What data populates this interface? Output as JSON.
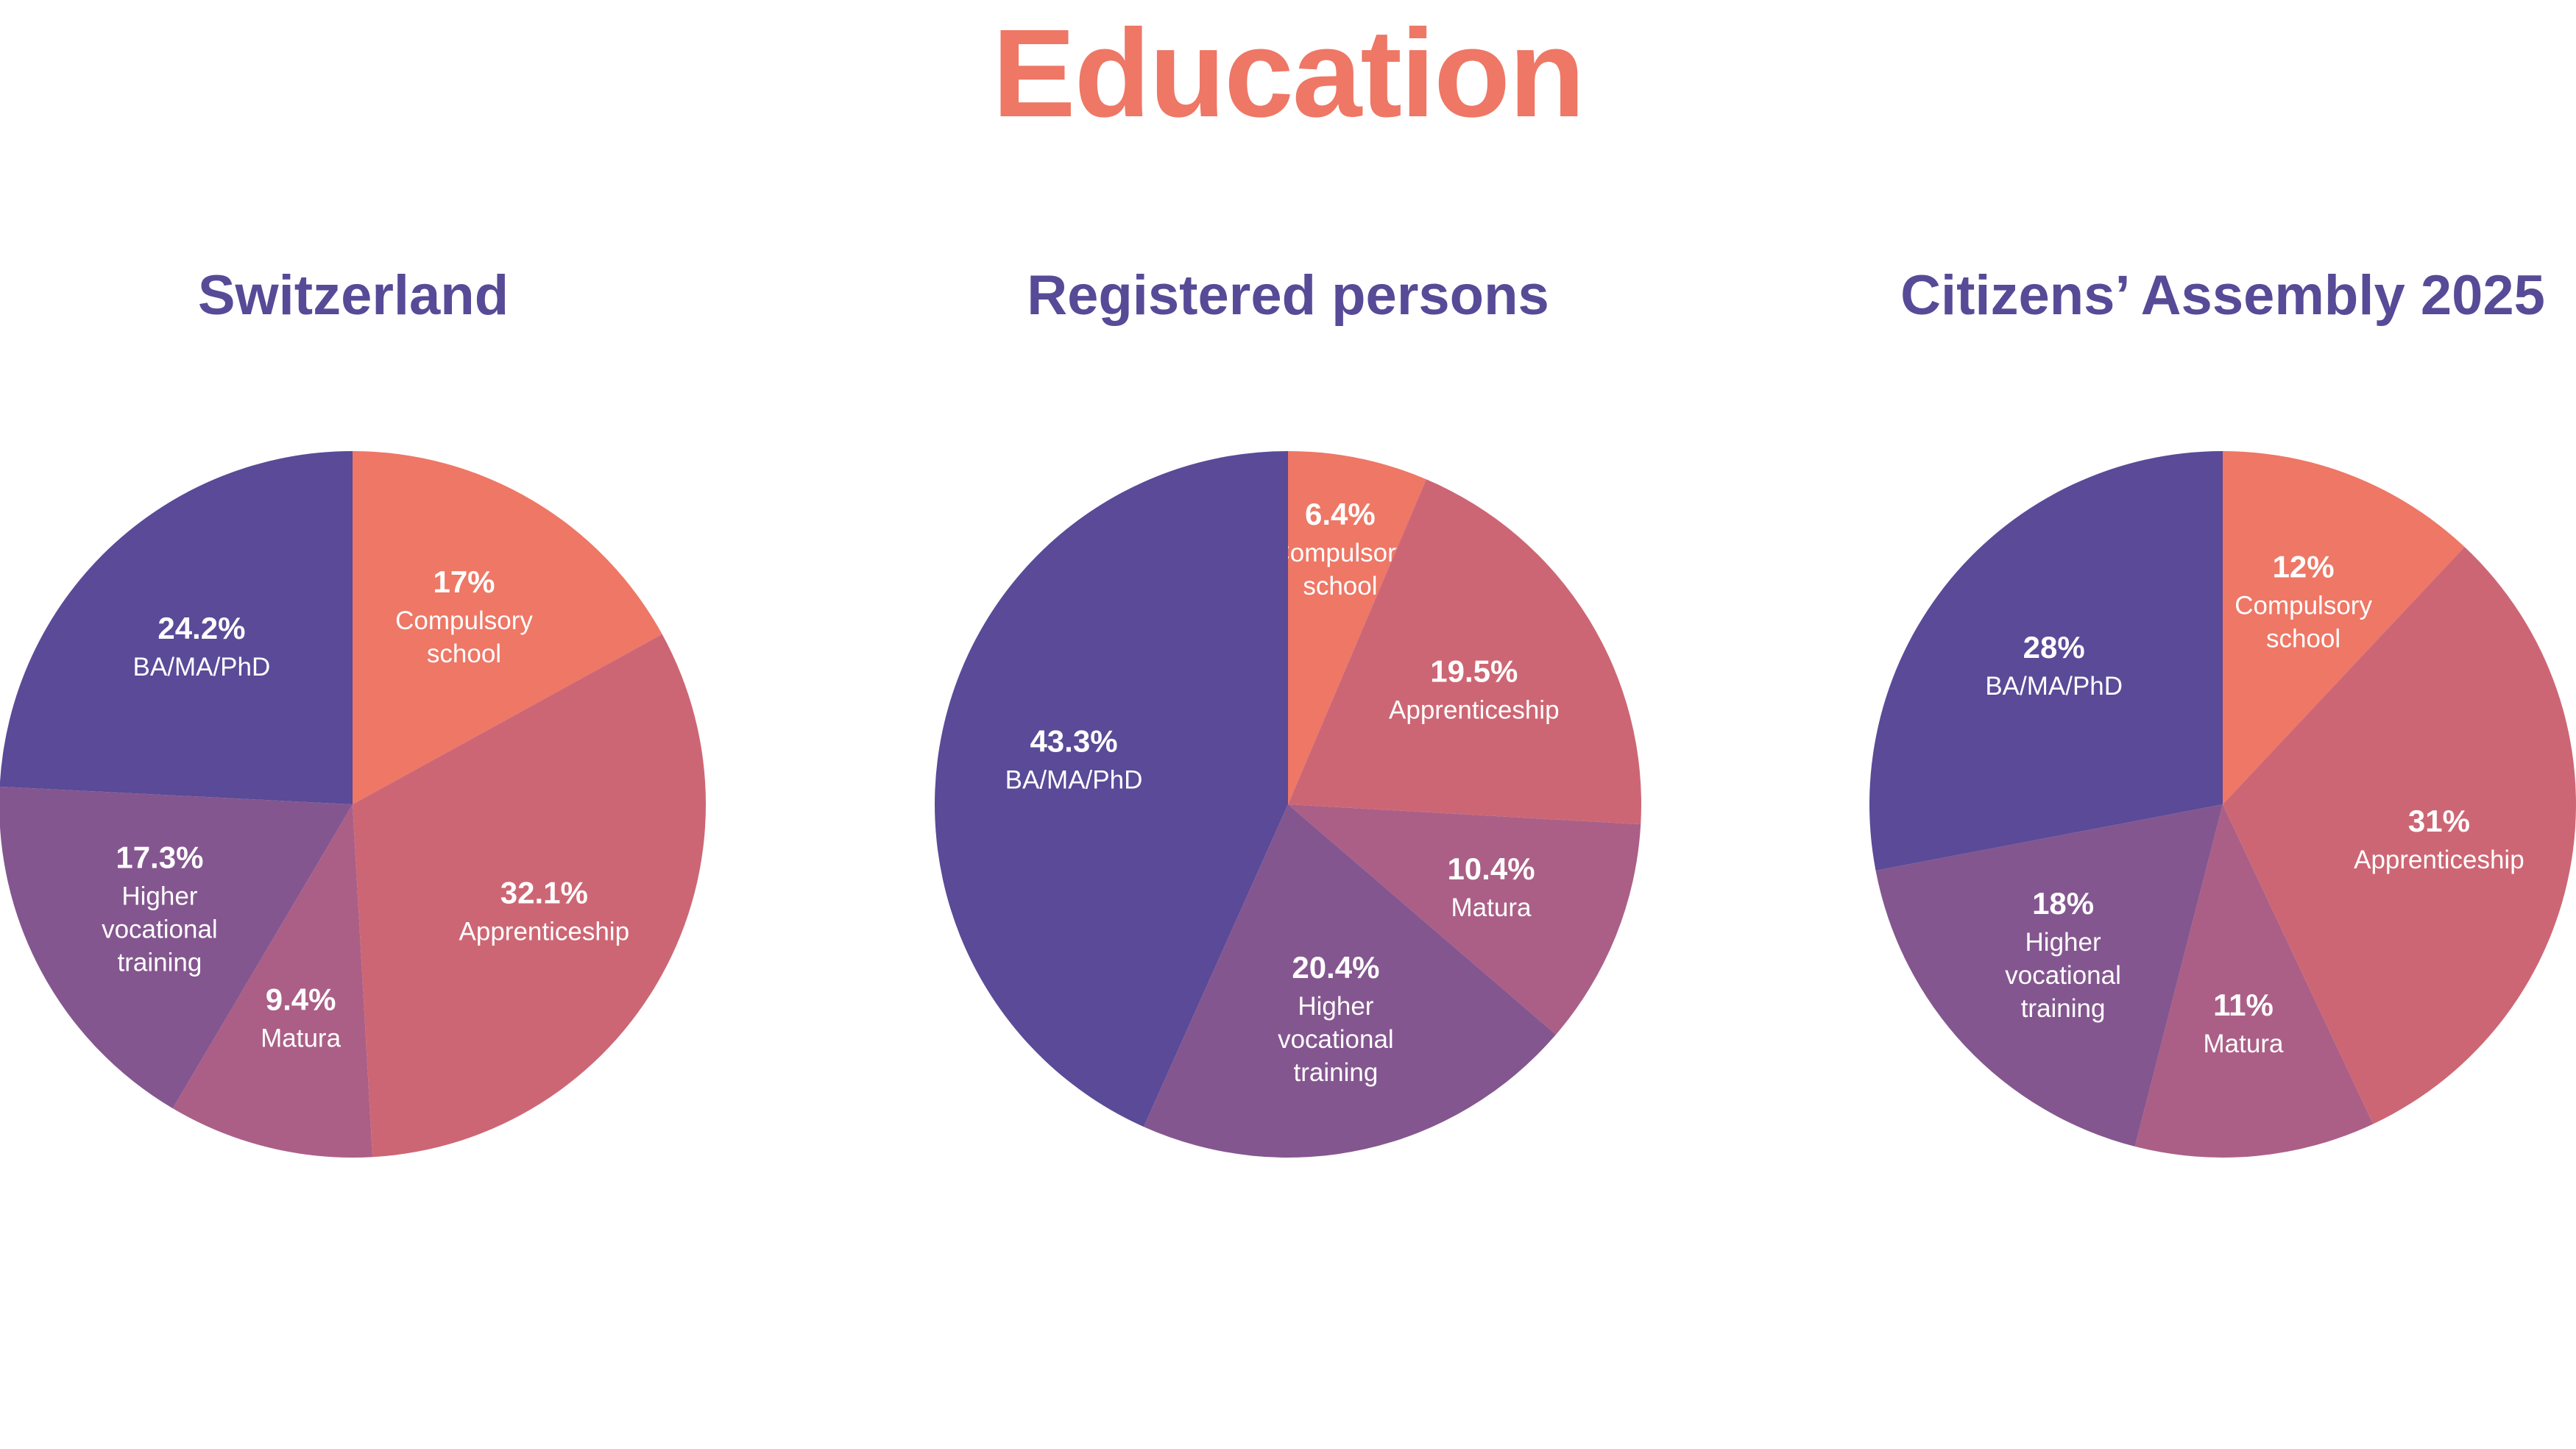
{
  "title": "Education",
  "colors": {
    "title": "#EE7766",
    "panel_title": "#574A97",
    "text_on_slice": "#FFFFFF",
    "Compulsory school": "#EE7766",
    "Apprenticeship": "#CD6674",
    "Matura": "#AB5F86",
    "Higher vocational training": "#84568F",
    "BA/MA/PhD": "#5A4A98"
  },
  "chart_data": [
    {
      "type": "pie",
      "title": "Switzerland",
      "slices": [
        {
          "category": "Compulsory school",
          "value": 17,
          "label": "17%"
        },
        {
          "category": "Apprenticeship",
          "value": 32.1,
          "label": "32.1%"
        },
        {
          "category": "Matura",
          "value": 9.4,
          "label": "9.4%"
        },
        {
          "category": "Higher vocational training",
          "value": 17.3,
          "label": "17.3%"
        },
        {
          "category": "BA/MA/PhD",
          "value": 24.2,
          "label": "24.2%"
        }
      ]
    },
    {
      "type": "pie",
      "title": "Registered persons",
      "slices": [
        {
          "category": "Compulsory school",
          "value": 6.4,
          "label": "6.4%"
        },
        {
          "category": "Apprenticeship",
          "value": 19.5,
          "label": "19.5%"
        },
        {
          "category": "Matura",
          "value": 10.4,
          "label": "10.4%"
        },
        {
          "category": "Higher vocational training",
          "value": 20.4,
          "label": "20.4%"
        },
        {
          "category": "BA/MA/PhD",
          "value": 43.3,
          "label": "43.3%"
        }
      ]
    },
    {
      "type": "pie",
      "title": "Citizens’ Assembly 2025",
      "slices": [
        {
          "category": "Compulsory school",
          "value": 12,
          "label": "12%"
        },
        {
          "category": "Apprenticeship",
          "value": 31,
          "label": "31%"
        },
        {
          "category": "Matura",
          "value": 11,
          "label": "11%"
        },
        {
          "category": "Higher vocational training",
          "value": 18,
          "label": "18%"
        },
        {
          "category": "BA/MA/PhD",
          "value": 28,
          "label": "28%"
        }
      ]
    }
  ]
}
